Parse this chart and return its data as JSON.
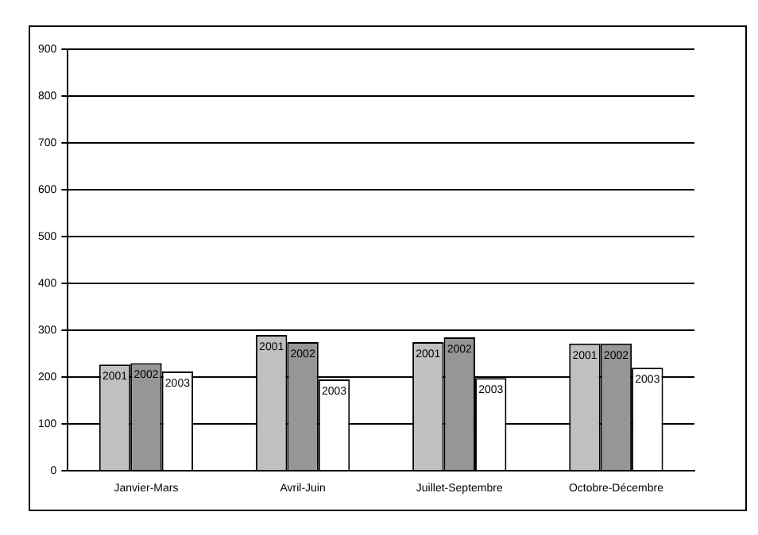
{
  "chart_data": {
    "type": "bar",
    "categories": [
      "Janvier-Mars",
      "Avril-Juin",
      "Juillet-Septembre",
      "Octobre-Décembre"
    ],
    "series": [
      {
        "name": "2001",
        "color": "#c0c0c0",
        "values": [
          227,
          290,
          275,
          272
        ]
      },
      {
        "name": "2002",
        "color": "#969696",
        "values": [
          230,
          275,
          285,
          272
        ]
      },
      {
        "name": "2003",
        "color": "#ffffff",
        "values": [
          212,
          195,
          198,
          220
        ]
      }
    ],
    "ylim": [
      0,
      900
    ],
    "yticks": [
      0,
      100,
      200,
      300,
      400,
      500,
      600,
      700,
      800,
      900
    ],
    "grid": "y",
    "legend": false
  }
}
